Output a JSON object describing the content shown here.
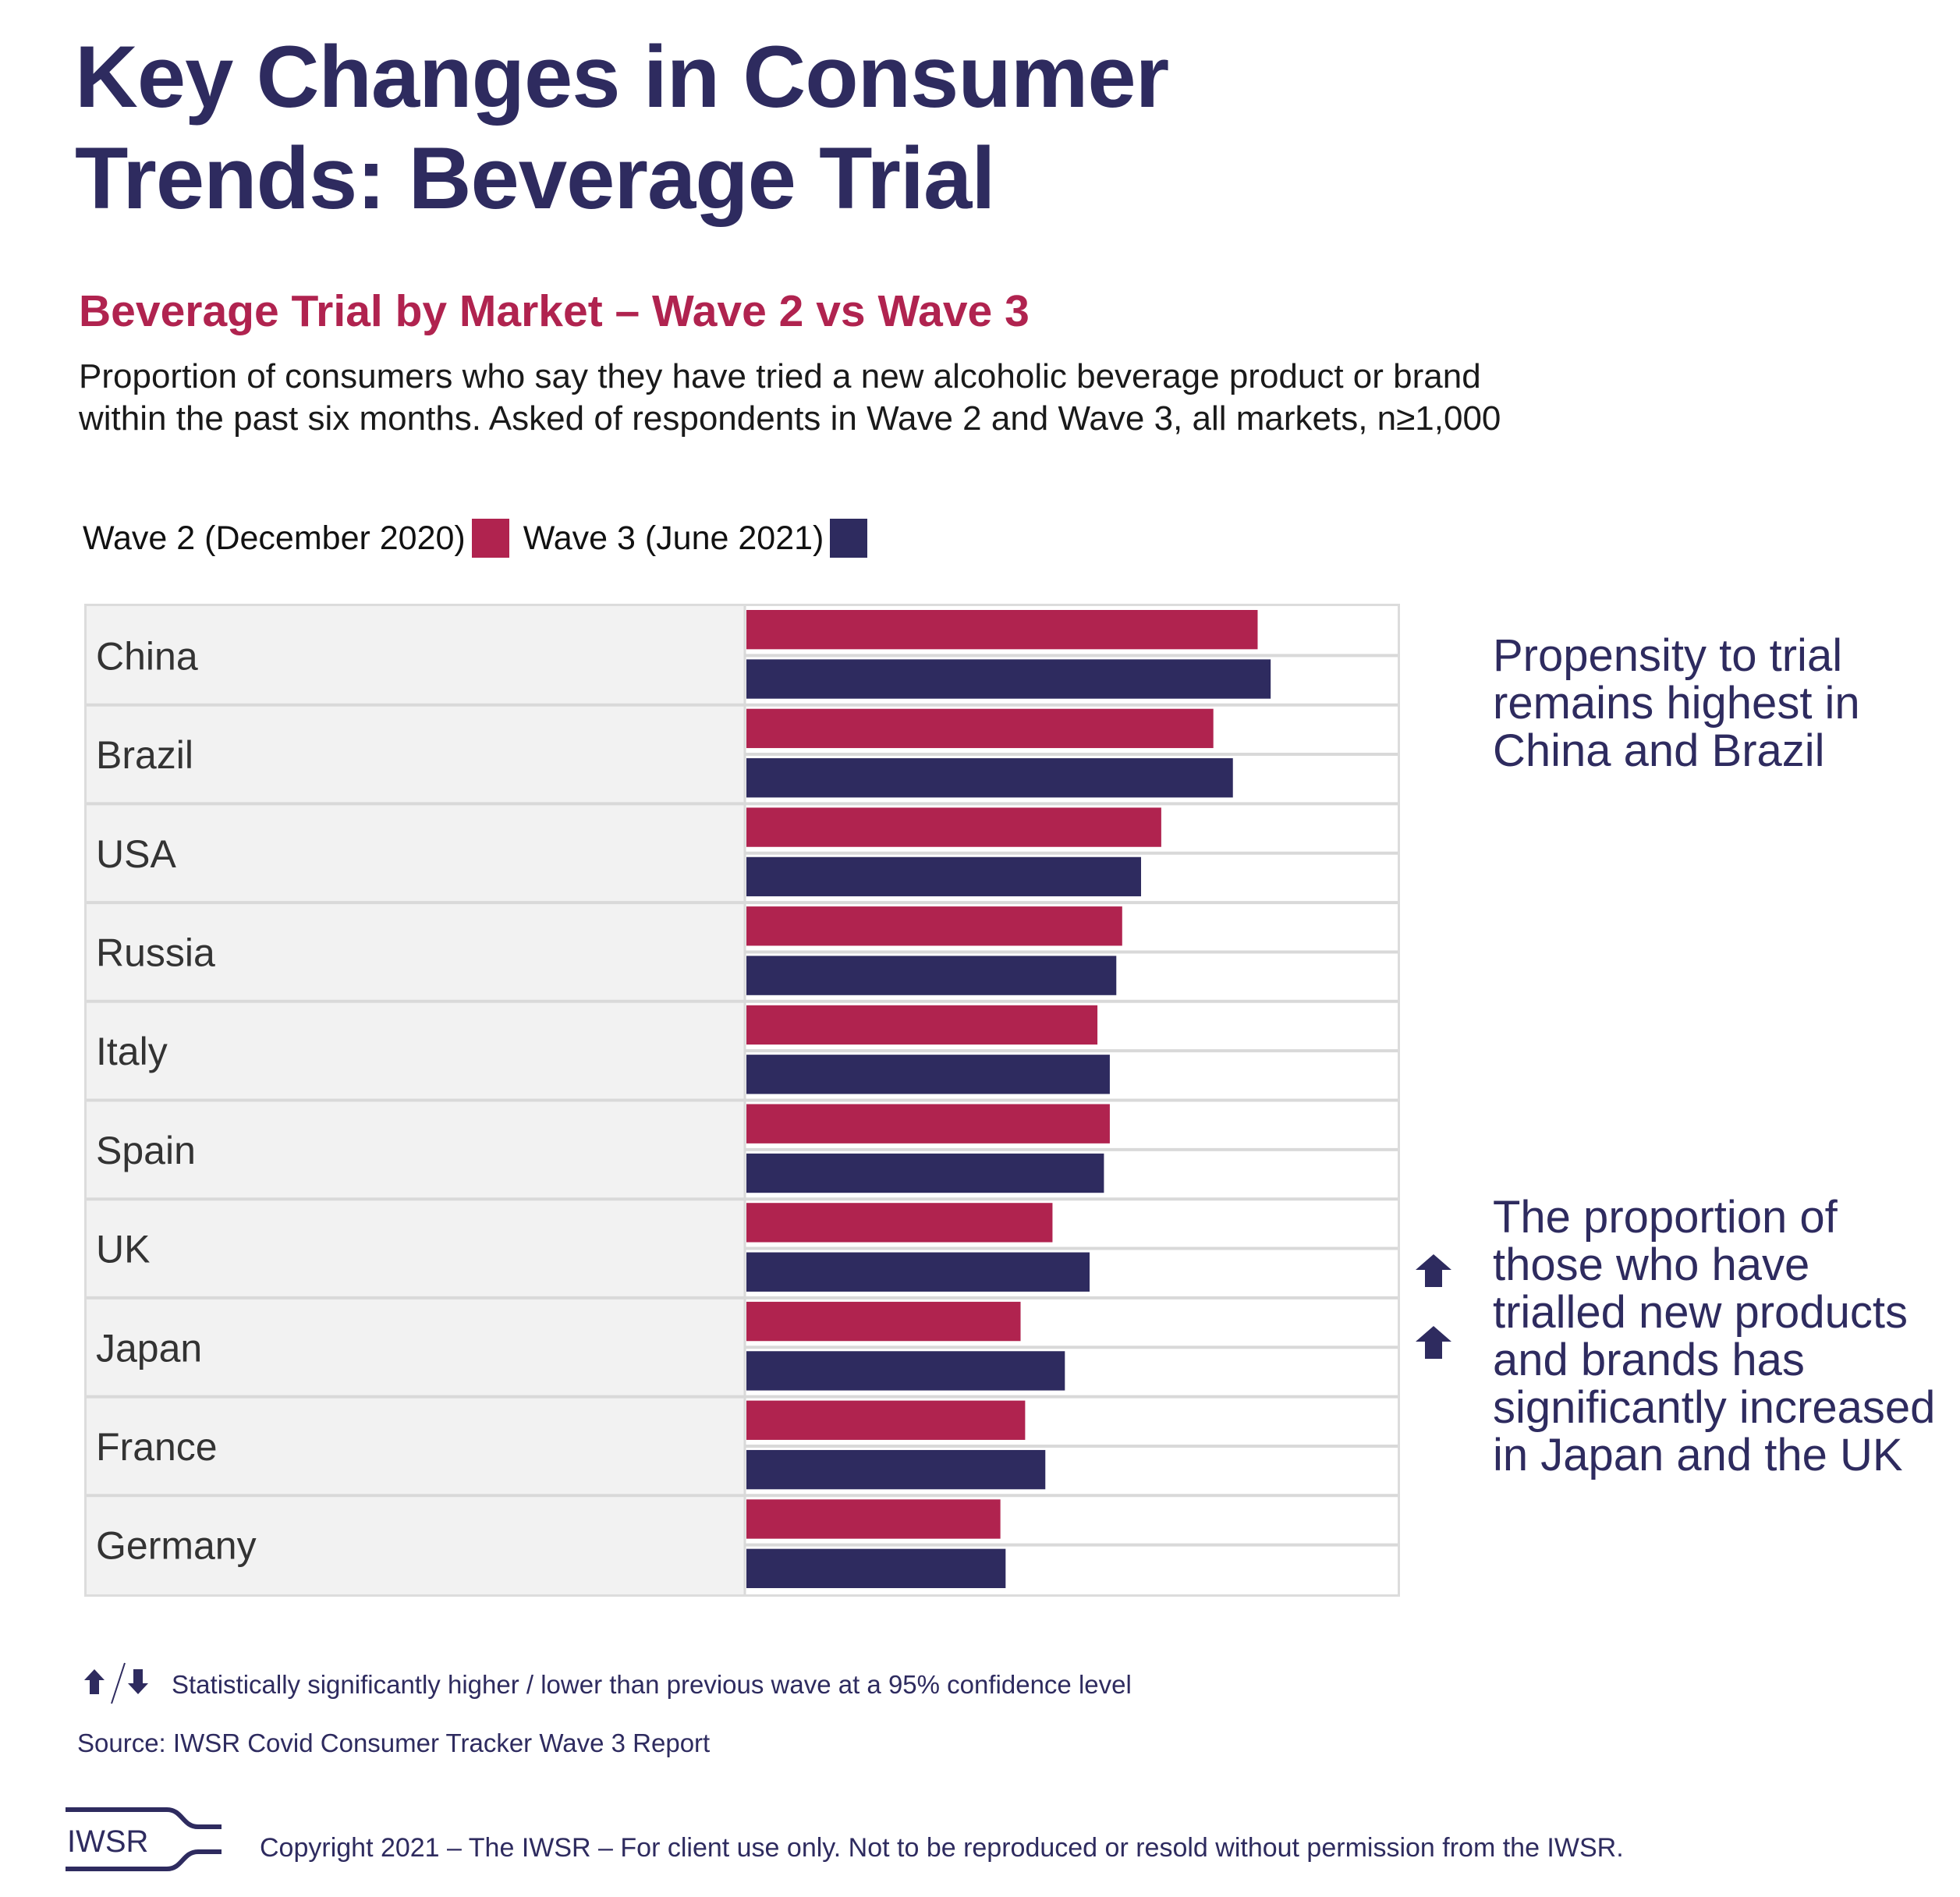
{
  "header": {
    "title_line1": "Key Changes in Consumer",
    "title_line2": "Trends: Beverage Trial"
  },
  "chart_header": {
    "subtitle": "Beverage Trial by Market – Wave 2 vs Wave 3",
    "description": "Proportion of consumers who say they have tried a new alcoholic beverage product or brand within the past six months. Asked of respondents in Wave 2 and Wave 3, all markets, n≥1,000"
  },
  "legend": [
    {
      "label": "Wave 2 (December 2020)",
      "color": "#b0234f"
    },
    {
      "label": "Wave 3 (June 2021)",
      "color": "#2e2b5f"
    }
  ],
  "chart_data": {
    "type": "bar",
    "orientation": "horizontal",
    "title": "Beverage Trial by Market – Wave 2 vs Wave 3",
    "xlabel": "",
    "ylabel": "",
    "value_unit": "% of respondents (estimated; no axis shown)",
    "xlim": [
      0,
      100
    ],
    "grid": false,
    "legend_position": "top-left",
    "categories": [
      "China",
      "Brazil",
      "USA",
      "Russia",
      "Italy",
      "Spain",
      "UK",
      "Japan",
      "France",
      "Germany"
    ],
    "series": [
      {
        "name": "Wave 2 (December 2020)",
        "color": "#b0234f",
        "values": [
          78.5,
          71.7,
          63.7,
          57.7,
          53.9,
          55.8,
          47.0,
          42.1,
          42.8,
          39.0
        ]
      },
      {
        "name": "Wave 3 (June 2021)",
        "color": "#2e2b5f",
        "values": [
          80.5,
          74.7,
          60.6,
          56.8,
          55.8,
          54.9,
          52.7,
          48.9,
          45.9,
          39.8
        ]
      }
    ],
    "significance": [
      {
        "category": "UK",
        "series": "Wave 3 (June 2021)",
        "direction": "up"
      },
      {
        "category": "Japan",
        "series": "Wave 3 (June 2021)",
        "direction": "up"
      }
    ]
  },
  "annotations": {
    "note_1": "Propensity to trial remains highest in China and Brazil",
    "note_2": "The proportion of those who have trialled new products and brands has significantly increased in Japan and the UK",
    "arrow_icon": "arrow-up-icon"
  },
  "footer": {
    "significance_note": "Statistically significantly higher / lower than previous wave at a 95% confidence level",
    "source": "Source: IWSR Covid Consumer Tracker Wave 3 Report",
    "logo_text": "IWSR",
    "copyright": "Copyright 2021 – The IWSR – For client use only. Not to be reproduced or resold without permission from the IWSR."
  }
}
